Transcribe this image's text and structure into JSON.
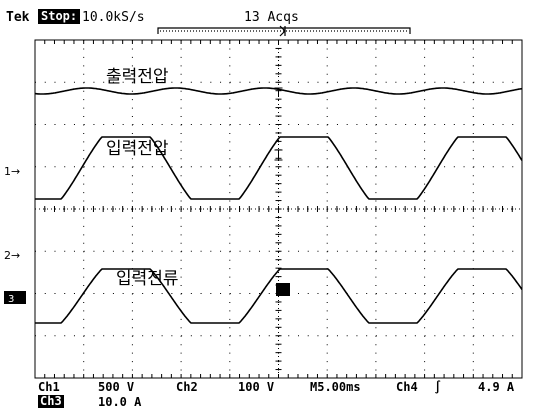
{
  "header": {
    "brand": "Tek",
    "state": "Stop:",
    "sample_rate": "10.0kS/s",
    "acquisitions": "13 Acqs"
  },
  "traces": {
    "output_voltage": "출력전압",
    "input_voltage": "입력전압",
    "input_current": "입력전류"
  },
  "markers": {
    "ch1": "1→",
    "ch2": "2→",
    "ch3": "3"
  },
  "footer": {
    "ch1_label": "Ch1",
    "ch1_scale": "500 V",
    "ch2_label": "Ch2",
    "ch2_scale": "100 V",
    "timebase": "M5.00ms",
    "trigger_source": "Ch4",
    "trigger_slope": "∫",
    "trigger_level": "4.9 A",
    "ch3_label": "Ch3",
    "ch3_scale": "10.0 A"
  },
  "colors": {
    "background": "#ffffff",
    "trace": "#000000",
    "graticule": "#000000"
  }
}
